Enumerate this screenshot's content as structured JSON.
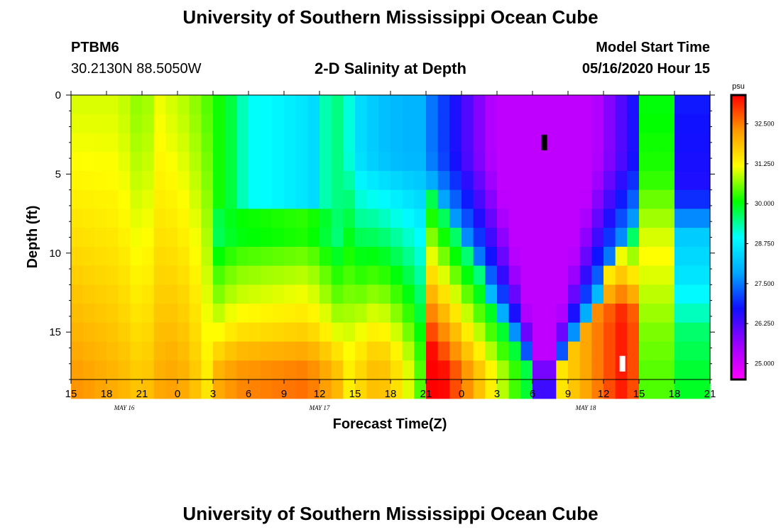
{
  "header": {
    "title": "University of Southern Mississippi Ocean Cube",
    "station_id": "PTBM6",
    "coordinates": "30.2130N 88.5050W",
    "subtitle": "2-D Salinity at Depth",
    "model_start_label": "Model Start Time",
    "model_start_value": "05/16/2020 Hour 15"
  },
  "footer": {
    "title": "University of Southern Mississippi Ocean Cube"
  },
  "chart_data": {
    "type": "heatmap",
    "title": "2-D Salinity at Depth",
    "xlabel": "Forecast Time(Z)",
    "ylabel": "Depth (ft)",
    "x_hours_range": [
      0,
      54
    ],
    "x_tick_hours": [
      0,
      3,
      6,
      9,
      12,
      15,
      18,
      21,
      24,
      27,
      30,
      33,
      36,
      39,
      42,
      45,
      48,
      51,
      54
    ],
    "x_tick_labels": [
      "15",
      "18",
      "21",
      "0",
      "3",
      "6",
      "9",
      "12",
      "15",
      "18",
      "21",
      "0",
      "3",
      "6",
      "9",
      "12",
      "15",
      "18",
      "21"
    ],
    "date_labels": [
      {
        "hour": 4.5,
        "text": "MAY 16"
      },
      {
        "hour": 21,
        "text": "MAY 17"
      },
      {
        "hour": 43.5,
        "text": "MAY 18"
      }
    ],
    "ylim": [
      0,
      18
    ],
    "y_ticks": [
      0,
      5,
      10,
      15
    ],
    "y_tick_labels": [
      "0",
      "5",
      "10",
      "15"
    ],
    "colorbar": {
      "unit": "psu",
      "range": [
        24.5,
        33.4
      ],
      "ticks": [
        25.0,
        26.25,
        27.5,
        28.75,
        30.0,
        31.25,
        32.5
      ],
      "tick_labels": [
        "25.000",
        "26.250",
        "27.500",
        "28.750",
        "30.000",
        "31.250",
        "32.500"
      ],
      "colors": [
        "#ff00ff",
        "#9a00ff",
        "#1010ff",
        "#00a8ff",
        "#00ffff",
        "#00ff00",
        "#ffff00",
        "#ff9900",
        "#ff0000"
      ]
    },
    "grid": {
      "time_step_hours": 1,
      "depth_step_ft": 1.25,
      "depth_levels": 15
    },
    "markers": [
      {
        "name": "min",
        "hour": 40,
        "depth": 3,
        "color": "#000000"
      },
      {
        "name": "max",
        "hour": 46.6,
        "depth": 17,
        "color": "#ffffff"
      }
    ]
  }
}
